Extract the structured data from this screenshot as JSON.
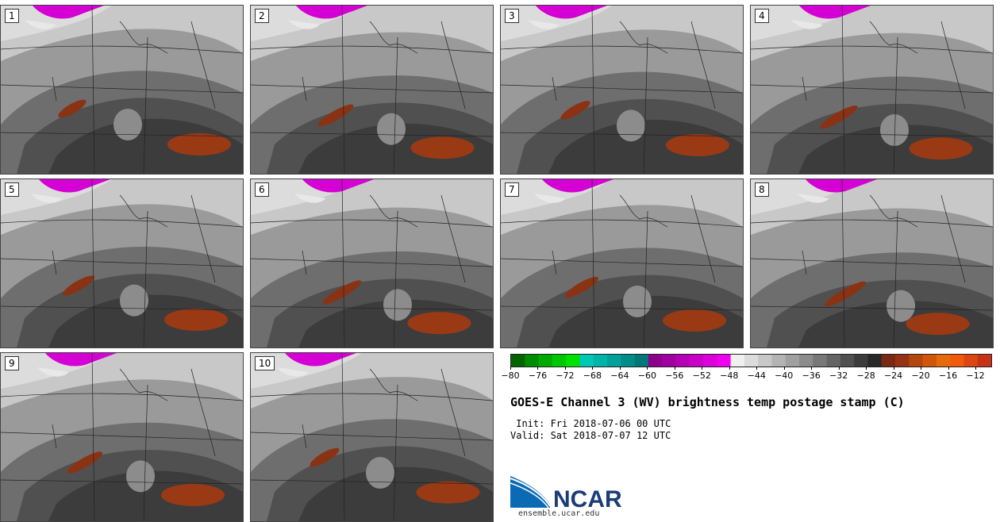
{
  "panels": [
    {
      "label": "1"
    },
    {
      "label": "2"
    },
    {
      "label": "3"
    },
    {
      "label": "4"
    },
    {
      "label": "5"
    },
    {
      "label": "6"
    },
    {
      "label": "7"
    },
    {
      "label": "8"
    },
    {
      "label": "9"
    },
    {
      "label": "10"
    }
  ],
  "colorbar": {
    "ticks": [
      "−80",
      "−76",
      "−72",
      "−68",
      "−64",
      "−60",
      "−56",
      "−52",
      "−48",
      "−44",
      "−40",
      "−36",
      "−32",
      "−28",
      "−24",
      "−20",
      "−16",
      "−12"
    ],
    "colors": [
      "#006400",
      "#008c00",
      "#00aa00",
      "#00c800",
      "#00e100",
      "#00c8b4",
      "#00b4aa",
      "#00a09a",
      "#008c8a",
      "#007878",
      "#8c008c",
      "#a000a0",
      "#b400b4",
      "#c800c8",
      "#dc00dc",
      "#f000f0",
      "#f0f0f0",
      "#dcdcdc",
      "#c8c8c8",
      "#b4b4b4",
      "#a0a0a0",
      "#8c8c8c",
      "#787878",
      "#646464",
      "#505050",
      "#3c3c3c",
      "#282828",
      "#7a2a14",
      "#963214",
      "#b4460f",
      "#d2560a",
      "#e66a0a",
      "#f05a0a",
      "#dc4614",
      "#c83214"
    ]
  },
  "title": "GOES-E Channel 3 (WV) brightness temp postage stamp (C)",
  "init": " Init: Fri 2018-07-06 00 UTC",
  "valid": "Valid: Sat 2018-07-07 12 UTC",
  "logo_text": "NCAR",
  "site": "ensemble.ucar.edu"
}
